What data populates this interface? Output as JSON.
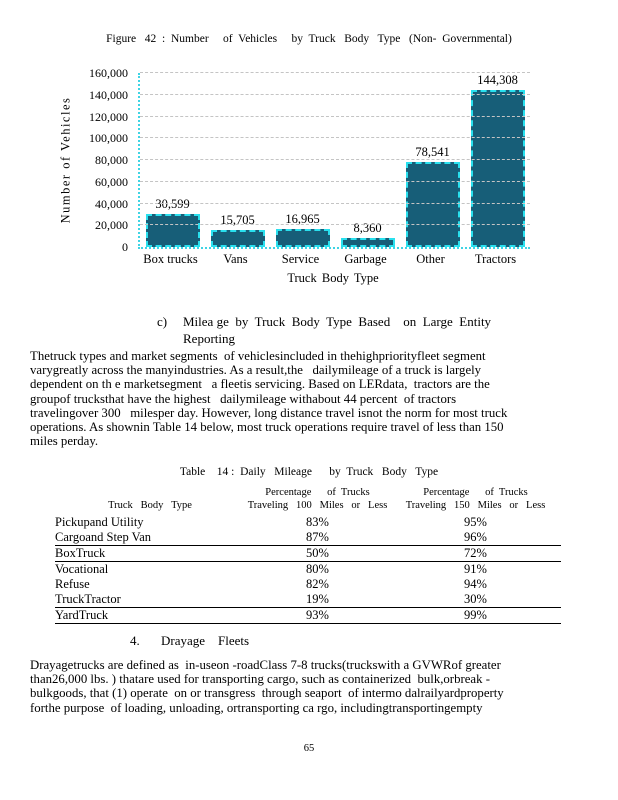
{
  "figure": {
    "caption": "Figure   42  :  Number     of  Vehicles     by  Truck   Body   Type   (Non-  Governmental)"
  },
  "chart_data": {
    "type": "bar",
    "title": "Figure 42: Number of Vehicles by Truck Body Type (Non-Governmental)",
    "categories": [
      "Box trucks",
      "Vans",
      "Service",
      "Garbage",
      "Other",
      "Tractors"
    ],
    "values": [
      30599,
      15705,
      16965,
      8360,
      78541,
      144308
    ],
    "value_labels": [
      "30,599",
      "15,705",
      "16,965",
      "8,360",
      "78,541",
      "144,308"
    ],
    "xlabel": "Truck Body Type",
    "ylabel": "Number of Vehicles",
    "ylim": [
      0,
      160000
    ],
    "ytick_step": 20000,
    "grid": "horizontal-dashed",
    "legend": "none",
    "bar_color": "#175e78",
    "bar_border_color": "#29e0ee",
    "axis_color": "#3fd4e4"
  },
  "section_c": {
    "number": "c)",
    "lines": [
      "Milea ge  by  Truck  Body  Type  Based    on  Large  Entity",
      "Reporting"
    ]
  },
  "paragraph_1": [
    "Thetruck types and market segments  of vehiclesincluded in thehighpriorityfleet segment",
    "varygreatly across the manyindustries. As a result,the   dailymileage of a truck is largely",
    "dependent on th e marketsegment   a fleetis servicing. Based on LERdata,  tractors are the",
    "groupof trucksthat have the highest   dailymileage withabout 44 percent  of tractors",
    "travelingover 300   milesper day. However, long distance travel isnot the norm for most truck",
    "operations. As shownin Table 14 below, most truck operations require travel of less than 150",
    "miles perday."
  ],
  "table": {
    "caption": "Table    14 :  Daily   Mileage      by  Truck   Body   Type",
    "columns": [
      "Truck   Body   Type",
      "Percentage      of  Trucks\nTraveling   100   Miles   or   Less",
      "Percentage      of  Trucks\nTraveling   150   Miles   or   Less"
    ],
    "rows": [
      {
        "type": "Pickupand Utility",
        "p100": "83%",
        "p150": "95%"
      },
      {
        "type": "Cargoand Step Van",
        "p100": "87%",
        "p150": "96%"
      },
      {
        "type": "BoxTruck",
        "p100": "50%",
        "p150": "72%"
      },
      {
        "type": "Vocational",
        "p100": "80%",
        "p150": "91%"
      },
      {
        "type": "Refuse",
        "p100": "82%",
        "p150": "94%"
      },
      {
        "type": "TruckTractor",
        "p100": "19%",
        "p150": "30%"
      },
      {
        "type": "YardTruck",
        "p100": "93%",
        "p150": "99%"
      }
    ]
  },
  "section_4": {
    "number": "4.",
    "title": "Drayage    Fleets"
  },
  "paragraph_2": [
    "Drayagetrucks are defined as  in-useon -roadClass 7-8 trucks(truckswith a GVWRof greater",
    "than26,000 lbs. ) thatare used for transporting cargo, such as containerized  bulk,orbreak -",
    "bulkgoods, that (1) operate  on or transgress  through seaport  of intermo dalrailyardproperty",
    "forthe purpose  of loading, unloading, ortransporting ca rgo, includingtransportingempty"
  ],
  "page_number": "65"
}
